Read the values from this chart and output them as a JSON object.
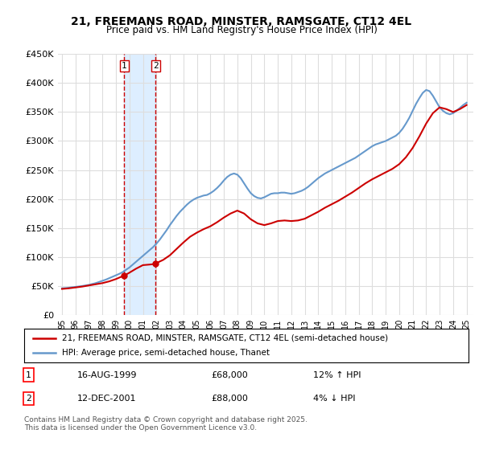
{
  "title": "21, FREEMANS ROAD, MINSTER, RAMSGATE, CT12 4EL",
  "subtitle": "Price paid vs. HM Land Registry's House Price Index (HPI)",
  "legend_line1": "21, FREEMANS ROAD, MINSTER, RAMSGATE, CT12 4EL (semi-detached house)",
  "legend_line2": "HPI: Average price, semi-detached house, Thanet",
  "transaction1_label": "1",
  "transaction1_date": "16-AUG-1999",
  "transaction1_price": "£68,000",
  "transaction1_hpi": "12% ↑ HPI",
  "transaction2_label": "2",
  "transaction2_date": "12-DEC-2001",
  "transaction2_price": "£88,000",
  "transaction2_hpi": "4% ↓ HPI",
  "footer": "Contains HM Land Registry data © Crown copyright and database right 2025.\nThis data is licensed under the Open Government Licence v3.0.",
  "house_color": "#cc0000",
  "hpi_color": "#6699cc",
  "shaded_region_color": "#ddeeff",
  "vertical_line_color": "#cc0000",
  "background_color": "#ffffff",
  "grid_color": "#dddddd",
  "ylim": [
    0,
    450000
  ],
  "yticks": [
    0,
    50000,
    100000,
    150000,
    200000,
    250000,
    300000,
    350000,
    400000,
    450000
  ],
  "ytick_labels": [
    "£0",
    "£50K",
    "£100K",
    "£150K",
    "£200K",
    "£250K",
    "£300K",
    "£350K",
    "£400K",
    "£450K"
  ],
  "xlim_start": 1995,
  "xlim_end": 2025.5,
  "xtick_years": [
    1995,
    1996,
    1997,
    1998,
    1999,
    2000,
    2001,
    2002,
    2003,
    2004,
    2005,
    2006,
    2007,
    2008,
    2009,
    2010,
    2011,
    2012,
    2013,
    2014,
    2015,
    2016,
    2017,
    2018,
    2019,
    2020,
    2021,
    2022,
    2023,
    2024,
    2025
  ],
  "transaction1_x": 1999.62,
  "transaction2_x": 2001.95,
  "hpi_years": [
    1995.0,
    1995.25,
    1995.5,
    1995.75,
    1996.0,
    1996.25,
    1996.5,
    1996.75,
    1997.0,
    1997.25,
    1997.5,
    1997.75,
    1998.0,
    1998.25,
    1998.5,
    1998.75,
    1999.0,
    1999.25,
    1999.5,
    1999.75,
    2000.0,
    2000.25,
    2000.5,
    2000.75,
    2001.0,
    2001.25,
    2001.5,
    2001.75,
    2002.0,
    2002.25,
    2002.5,
    2002.75,
    2003.0,
    2003.25,
    2003.5,
    2003.75,
    2004.0,
    2004.25,
    2004.5,
    2004.75,
    2005.0,
    2005.25,
    2005.5,
    2005.75,
    2006.0,
    2006.25,
    2006.5,
    2006.75,
    2007.0,
    2007.25,
    2007.5,
    2007.75,
    2008.0,
    2008.25,
    2008.5,
    2008.75,
    2009.0,
    2009.25,
    2009.5,
    2009.75,
    2010.0,
    2010.25,
    2010.5,
    2010.75,
    2011.0,
    2011.25,
    2011.5,
    2011.75,
    2012.0,
    2012.25,
    2012.5,
    2012.75,
    2013.0,
    2013.25,
    2013.5,
    2013.75,
    2014.0,
    2014.25,
    2014.5,
    2014.75,
    2015.0,
    2015.25,
    2015.5,
    2015.75,
    2016.0,
    2016.25,
    2016.5,
    2016.75,
    2017.0,
    2017.25,
    2017.5,
    2017.75,
    2018.0,
    2018.25,
    2018.5,
    2018.75,
    2019.0,
    2019.25,
    2019.5,
    2019.75,
    2020.0,
    2020.25,
    2020.5,
    2020.75,
    2021.0,
    2021.25,
    2021.5,
    2021.75,
    2022.0,
    2022.25,
    2022.5,
    2022.75,
    2023.0,
    2023.25,
    2023.5,
    2023.75,
    2024.0,
    2024.25,
    2024.5,
    2024.75,
    2025.0
  ],
  "hpi_values": [
    46000,
    46500,
    47000,
    47800,
    48500,
    49200,
    50000,
    51000,
    52000,
    53500,
    55000,
    57000,
    59000,
    61000,
    63500,
    66000,
    68500,
    71000,
    74000,
    78000,
    82000,
    87000,
    92000,
    97000,
    102000,
    107000,
    112000,
    117000,
    123000,
    130000,
    138000,
    146000,
    155000,
    163000,
    171000,
    178000,
    184000,
    190000,
    195000,
    199000,
    202000,
    204000,
    206000,
    207000,
    210000,
    214000,
    219000,
    225000,
    232000,
    238000,
    242000,
    244000,
    242000,
    236000,
    227000,
    218000,
    210000,
    205000,
    202000,
    201000,
    203000,
    206000,
    209000,
    210000,
    210000,
    211000,
    211000,
    210000,
    209000,
    210000,
    212000,
    214000,
    217000,
    221000,
    226000,
    231000,
    236000,
    240000,
    244000,
    247000,
    250000,
    253000,
    256000,
    259000,
    262000,
    265000,
    268000,
    271000,
    275000,
    279000,
    283000,
    287000,
    291000,
    294000,
    296000,
    298000,
    300000,
    303000,
    306000,
    309000,
    314000,
    321000,
    330000,
    340000,
    352000,
    364000,
    374000,
    383000,
    388000,
    386000,
    378000,
    368000,
    358000,
    352000,
    348000,
    346000,
    348000,
    352000,
    357000,
    362000,
    366000
  ],
  "house_years": [
    1999.62,
    2001.95
  ],
  "house_values": [
    68000,
    88000
  ],
  "house_line_years": [
    1995.0,
    1995.5,
    1996.0,
    1996.5,
    1997.0,
    1997.5,
    1998.0,
    1998.5,
    1999.0,
    1999.5,
    1999.62,
    2000.0,
    2000.5,
    2001.0,
    2001.5,
    2001.95,
    2002.0,
    2002.5,
    2003.0,
    2003.5,
    2004.0,
    2004.5,
    2005.0,
    2005.5,
    2006.0,
    2006.5,
    2007.0,
    2007.5,
    2008.0,
    2008.5,
    2009.0,
    2009.5,
    2010.0,
    2010.5,
    2011.0,
    2011.5,
    2012.0,
    2012.5,
    2013.0,
    2013.5,
    2014.0,
    2014.5,
    2015.0,
    2015.5,
    2016.0,
    2016.5,
    2017.0,
    2017.5,
    2018.0,
    2018.5,
    2019.0,
    2019.5,
    2020.0,
    2020.5,
    2021.0,
    2021.5,
    2022.0,
    2022.5,
    2023.0,
    2023.5,
    2024.0,
    2024.5,
    2025.0
  ],
  "house_line_values": [
    45000,
    46000,
    47500,
    49000,
    51000,
    53000,
    55000,
    58000,
    62000,
    67000,
    68000,
    73000,
    80000,
    86000,
    87000,
    88000,
    89500,
    95000,
    103000,
    114000,
    125000,
    135000,
    142000,
    148000,
    153000,
    160000,
    168000,
    175000,
    180000,
    175000,
    165000,
    158000,
    155000,
    158000,
    162000,
    163000,
    162000,
    163000,
    166000,
    172000,
    178000,
    185000,
    191000,
    197000,
    204000,
    211000,
    219000,
    227000,
    234000,
    240000,
    246000,
    252000,
    260000,
    272000,
    288000,
    308000,
    330000,
    348000,
    358000,
    355000,
    350000,
    355000,
    362000
  ]
}
